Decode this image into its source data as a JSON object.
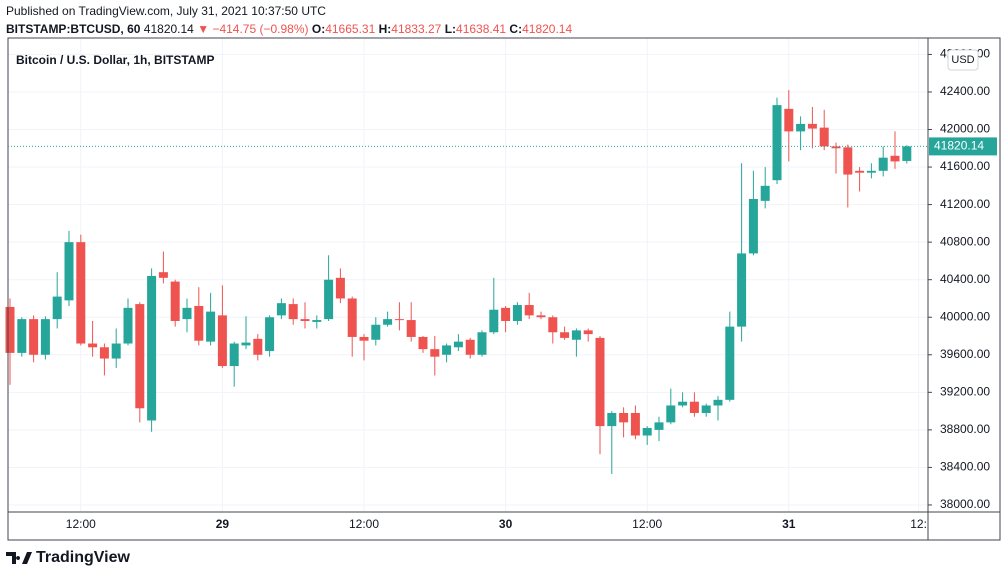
{
  "header": {
    "published": "Published on TradingView.com, July 31, 2021 10:37:50 UTC",
    "symbol": "BITSTAMP:BTCUSD, 60",
    "price": 41820.14,
    "arrow": "▼",
    "change": "−414.75 (−0.98%)",
    "o_label": "O:",
    "o": 41665.31,
    "h_label": "H:",
    "h": 41833.27,
    "l_label": "L:",
    "l": 41638.41,
    "c_label": "C:",
    "c": 41820.14
  },
  "footer": {
    "brand": "TradingView"
  },
  "chart_data": {
    "type": "candlestick",
    "title": "Bitcoin / U.S. Dollar, 1h, BITSTAMP",
    "currency": "USD",
    "up_color": "#26a69a",
    "down_color": "#ef5350",
    "grid": true,
    "last_price": 41820.14,
    "ylim": [
      37925,
      42975
    ],
    "yticks": [
      {
        "value": 38000,
        "label": "38000.00"
      },
      {
        "value": 38400,
        "label": "38400.00"
      },
      {
        "value": 38800,
        "label": "38800.00"
      },
      {
        "value": 39200,
        "label": "39200.00"
      },
      {
        "value": 39600,
        "label": "39600.00"
      },
      {
        "value": 40000,
        "label": "40000.00"
      },
      {
        "value": 40400,
        "label": "40400.00"
      },
      {
        "value": 40800,
        "label": "40800.00"
      },
      {
        "value": 41200,
        "label": "41200.00"
      },
      {
        "value": 41600,
        "label": "41600.00"
      },
      {
        "value": 42000,
        "label": "42000.00"
      },
      {
        "value": 42400,
        "label": "42400.00"
      },
      {
        "value": 42800,
        "label": "42800.00"
      }
    ],
    "categories": [
      null,
      null,
      null,
      null,
      null,
      null,
      "12:00",
      null,
      null,
      null,
      null,
      null,
      null,
      null,
      null,
      null,
      null,
      null,
      "29",
      null,
      null,
      null,
      null,
      null,
      null,
      null,
      null,
      null,
      null,
      null,
      "12:00",
      null,
      null,
      null,
      null,
      null,
      null,
      null,
      null,
      null,
      null,
      null,
      "30",
      null,
      null,
      null,
      null,
      null,
      null,
      null,
      null,
      null,
      null,
      null,
      "12:00",
      null,
      null,
      null,
      null,
      null,
      null,
      null,
      null,
      null,
      null,
      null,
      "31",
      null,
      null,
      null,
      null,
      null,
      null,
      null,
      null,
      null,
      null,
      "12:"
    ],
    "open": [
      40110,
      39620,
      39980,
      39600,
      39980,
      40180,
      40800,
      39720,
      39680,
      39560,
      39720,
      40140,
      38900,
      40480,
      40380,
      39980,
      40120,
      39740,
      40020,
      39480,
      39700,
      39770,
      39640,
      40020,
      40140,
      39980,
      39950,
      39980,
      40420,
      40200,
      39790,
      39760,
      39920,
      39980,
      39970,
      39790,
      39660,
      39600,
      39680,
      39760,
      39600,
      39840,
      40100,
      39960,
      40130,
      40020,
      40000,
      39840,
      39760,
      39860,
      39780,
      38840,
      38980,
      38980,
      38740,
      38800,
      38880,
      39060,
      39100,
      38980,
      39060,
      39120,
      39900,
      40680,
      41240,
      41460,
      42220,
      41980,
      42060,
      42020,
      41820,
      41810,
      41560,
      41540,
      41560,
      41720,
      41665,
      null
    ],
    "high": [
      40200,
      40000,
      40020,
      40010,
      40480,
      40920,
      40880,
      39960,
      39720,
      39880,
      40200,
      40160,
      40520,
      40700,
      40400,
      40200,
      40320,
      40260,
      40340,
      39740,
      40010,
      39820,
      40020,
      40200,
      40200,
      40160,
      40020,
      40660,
      40520,
      40220,
      39820,
      40000,
      40060,
      40160,
      40160,
      39800,
      39800,
      39720,
      39820,
      39780,
      39860,
      40420,
      40120,
      40160,
      40260,
      40060,
      40020,
      39900,
      39880,
      39880,
      39800,
      39000,
      39040,
      39060,
      38840,
      38940,
      39240,
      39200,
      39200,
      39080,
      39160,
      40060,
      41640,
      41560,
      41600,
      42340,
      42420,
      42140,
      42240,
      42210,
      41860,
      41840,
      41600,
      41640,
      41820,
      41980,
      41833,
      null
    ],
    "low": [
      39280,
      39580,
      39520,
      39550,
      39880,
      40120,
      39700,
      39580,
      39380,
      39460,
      39700,
      38880,
      38780,
      40360,
      39900,
      39840,
      39700,
      39700,
      39460,
      39260,
      39660,
      39540,
      39580,
      39980,
      39920,
      39880,
      39880,
      39960,
      40150,
      39580,
      39540,
      39700,
      39900,
      39860,
      39740,
      39620,
      39380,
      39520,
      39640,
      39560,
      39580,
      39820,
      39840,
      39920,
      39980,
      39980,
      39720,
      39760,
      39580,
      39740,
      38540,
      38330,
      38720,
      38700,
      38640,
      38680,
      38860,
      39040,
      38940,
      38940,
      38900,
      39100,
      39740,
      40660,
      41160,
      41420,
      41660,
      41780,
      41800,
      41780,
      41530,
      41170,
      41340,
      41480,
      41500,
      41580,
      41638,
      null
    ],
    "close": [
      39620,
      39980,
      39600,
      39980,
      40220,
      40800,
      39720,
      39680,
      39560,
      39720,
      40100,
      39030,
      40440,
      40420,
      39960,
      40100,
      39750,
      40060,
      39480,
      39720,
      39730,
      39600,
      40000,
      40150,
      39980,
      39960,
      39970,
      40400,
      40200,
      39790,
      39750,
      39920,
      39980,
      39970,
      39790,
      39660,
      39580,
      39700,
      39740,
      39600,
      39840,
      40080,
      39960,
      40130,
      40020,
      40000,
      39840,
      39780,
      39860,
      39820,
      38840,
      38980,
      38880,
      38740,
      38820,
      38880,
      39060,
      39100,
      38980,
      39060,
      39120,
      39900,
      40680,
      41260,
      41400,
      42260,
      41980,
      42060,
      42010,
      41820,
      41800,
      41520,
      41540,
      41560,
      41700,
      41660,
      41820,
      null
    ]
  }
}
